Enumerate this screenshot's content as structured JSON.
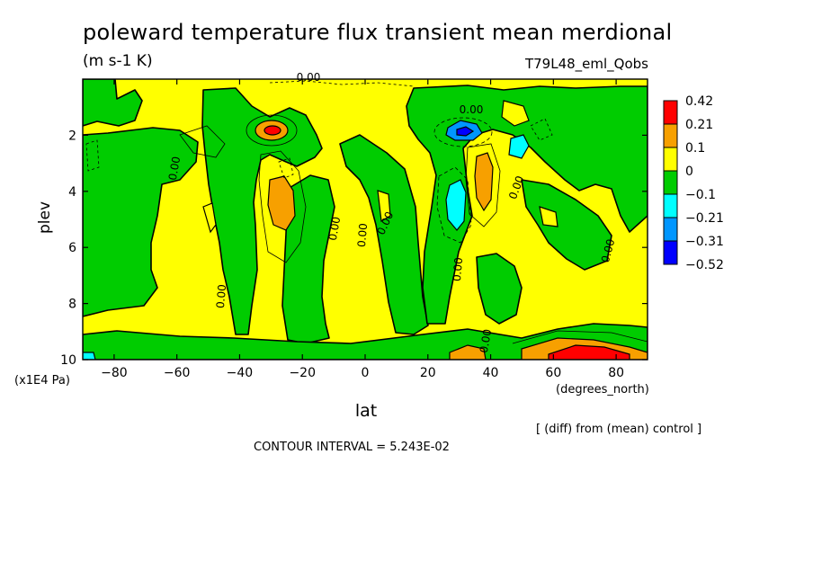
{
  "chart_data": {
    "type": "heatmap",
    "title": "poleward temperature flux transient mean merdional",
    "units": "(m s-1 K)",
    "run_label": "T79L48_eml_Qobs",
    "xlabel": "lat",
    "x_units": "(degrees_north)",
    "ylabel": "plev",
    "y_units": "(x1E4 Pa)",
    "xlim": [
      -90,
      90
    ],
    "ylim": [
      10,
      0
    ],
    "x_ticks": [
      -80,
      -60,
      -40,
      -20,
      0,
      20,
      40,
      60,
      80
    ],
    "y_ticks": [
      2,
      4,
      6,
      8,
      10
    ],
    "colorbar": {
      "labels": [
        "0.42",
        "0.21",
        "0.1",
        "0",
        "-0.1",
        "-0.21",
        "-0.31",
        "-0.52"
      ],
      "colors": [
        "#ff0000",
        "#f7a000",
        "#ffff00",
        "#00cc00",
        "#00ffff",
        "#0096ff",
        "#0000ff"
      ]
    },
    "contour_labels": [
      "0.00",
      "0.00",
      "0.00",
      "0.00",
      "0.00",
      "0.00",
      "0.00",
      "0.00",
      "0.00",
      "0.00",
      "0.00"
    ],
    "features": [
      {
        "x": -30,
        "y": 2.0,
        "value": 0.42
      },
      {
        "x": -27,
        "y": 4.3,
        "value": 0.21
      },
      {
        "x": 33,
        "y": 2.0,
        "value": -0.31
      },
      {
        "x": 29,
        "y": 4.5,
        "value": -0.21
      },
      {
        "x": 37,
        "y": 3.7,
        "value": 0.21
      },
      {
        "x": 47,
        "y": 2.7,
        "value": -0.21
      },
      {
        "x": 67,
        "y": 9.6,
        "value": 0.42
      },
      {
        "x": 36,
        "y": 9.7,
        "value": 0.21
      }
    ],
    "note": "[ (diff) from (mean) control ]",
    "contour_interval": "CONTOUR INTERVAL = 5.243E-02"
  }
}
